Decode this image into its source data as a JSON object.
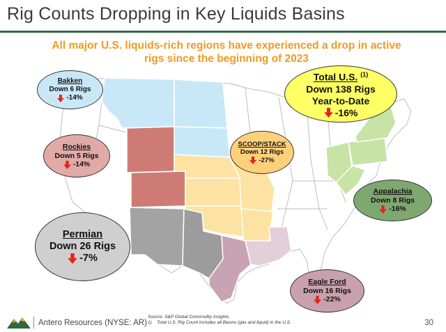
{
  "slide": {
    "title": "Rig Counts Dropping in Key Liquids Basins",
    "subtitle": "All major U.S. liquids-rich regions have experienced a drop in active rigs since the beginning of 2023"
  },
  "colors": {
    "accent_green": "#2f6b3c",
    "subtitle_orange": "#f29a1f",
    "bakken": "#c9e8f7",
    "rockies": "#e2aaa6",
    "permian": "#cfcfcf",
    "scoop_stack": "#ffd07a",
    "total": "#ffff66",
    "appalachia": "#7fa870",
    "eagle_ford": "#c9a0ad",
    "down_arrow": "#e0261f"
  },
  "callouts": {
    "bakken": {
      "name": "Bakken",
      "change": "Down 6 Rigs",
      "pct": "-14%"
    },
    "rockies": {
      "name": "Rockies",
      "change": "Down 5 Rigs",
      "pct": "-14%"
    },
    "permian": {
      "name": "Permian",
      "change": "Down 26 Rigs",
      "pct": "-7%"
    },
    "scoop": {
      "name": "SCOOP/STACK",
      "change": "Down 12 Rigs",
      "pct": "-27%"
    },
    "total": {
      "name": "Total U.S.",
      "footnote": "(1)",
      "change": "Down 138 Rigs",
      "period": "Year-to-Date",
      "pct": "-16%"
    },
    "appalachia": {
      "name": "Appalachia",
      "change": "Down 8 Rigs",
      "pct": "-16%"
    },
    "eagle": {
      "name": "Eagle Ford",
      "change": "Down 16 Rigs",
      "pct": "-22%"
    }
  },
  "footer": {
    "company": "Antero Resources (NYSE: AR)",
    "source": "Source: S&P Global Commodity Insights.",
    "note_num": "1)",
    "note": "Total U.S. Rig Count includes all Basins (gas and liquid) in the U.S.",
    "page": "30"
  }
}
